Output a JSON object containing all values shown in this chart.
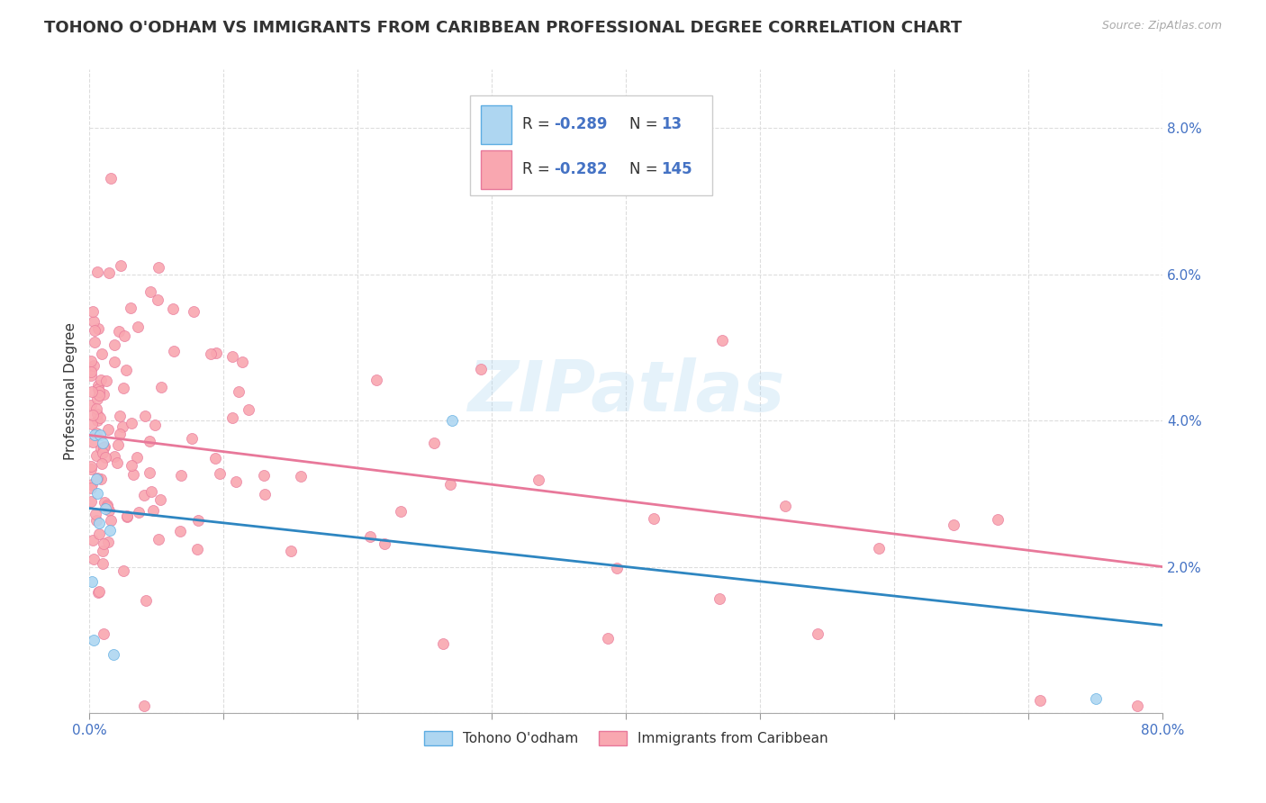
{
  "title": "TOHONO O'ODHAM VS IMMIGRANTS FROM CARIBBEAN PROFESSIONAL DEGREE CORRELATION CHART",
  "source": "Source: ZipAtlas.com",
  "ylabel": "Professional Degree",
  "watermark": "ZIPatlas",
  "xlim": [
    0.0,
    0.8
  ],
  "ylim": [
    0.0,
    0.088
  ],
  "series1_color": "#aed6f1",
  "series1_edge": "#5dade2",
  "series1_line": "#2e86c1",
  "series2_color": "#f9a7b0",
  "series2_edge": "#e8789a",
  "series2_line": "#e8789a",
  "legend_R1": "-0.289",
  "legend_N1": "13",
  "legend_R2": "-0.282",
  "legend_N2": "145",
  "legend_label1": "Tohono O'odham",
  "legend_label2": "Immigrants from Caribbean",
  "title_fontsize": 13,
  "axis_label_fontsize": 11,
  "tick_fontsize": 11,
  "background_color": "#ffffff",
  "grid_color": "#dddddd",
  "text_color": "#4472C4",
  "title_color": "#333333"
}
